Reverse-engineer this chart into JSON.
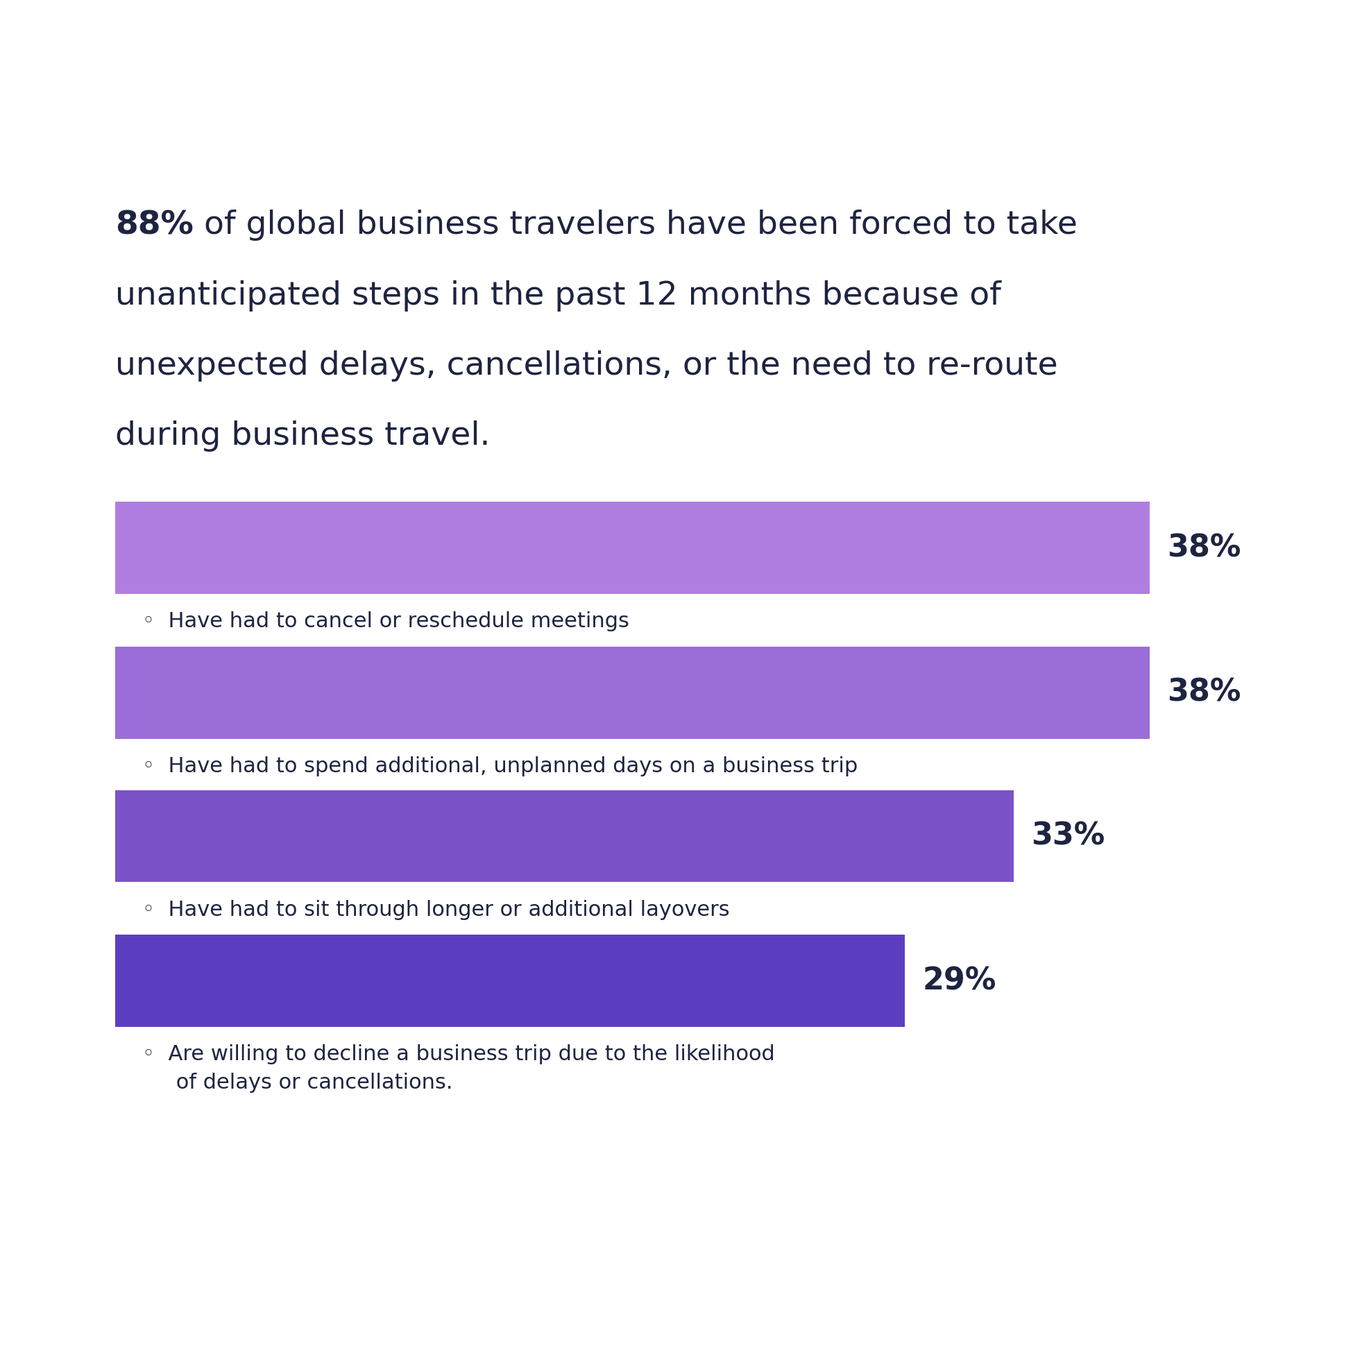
{
  "title_bold": "88%",
  "title_line1_rest": " of global business travelers have been forced to take",
  "title_line2": "unanticipated steps in the past 12 months because of",
  "title_line3": "unexpected delays, cancellations, or the need to re-route",
  "title_line4": "during business travel.",
  "bars": [
    {
      "value": 38,
      "label": "38%",
      "description": "◦  Have had to cancel or reschedule meetings",
      "color": "#b07ee0"
    },
    {
      "value": 38,
      "label": "38%",
      "description": "◦  Have had to spend additional, unplanned days on a business trip",
      "color": "#9b6dd8"
    },
    {
      "value": 33,
      "label": "33%",
      "description": "◦  Have had to sit through longer or additional layovers",
      "color": "#7b52c8"
    },
    {
      "value": 29,
      "label": "29%",
      "description": "◦  Are willing to decline a business trip due to the likelihood\n     of delays or cancellations.",
      "color": "#5b3fc0"
    }
  ],
  "scale_max": 40,
  "background_color": "#ffffff",
  "text_color": "#1e2440",
  "title_fontsize": 34,
  "label_fontsize": 32,
  "desc_fontsize": 22
}
